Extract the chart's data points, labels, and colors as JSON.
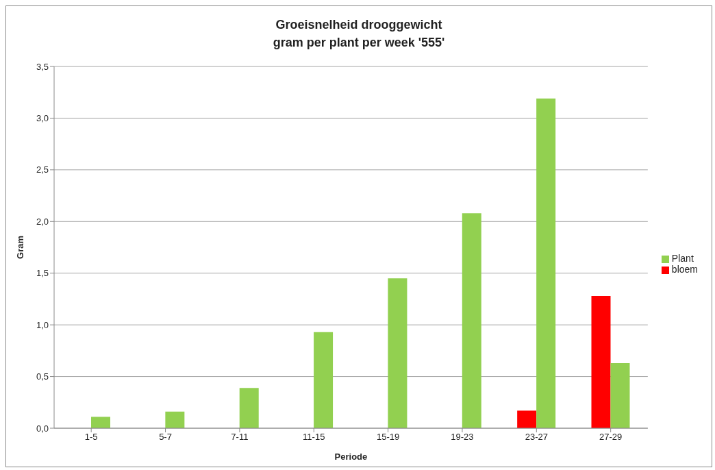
{
  "chart_data": {
    "type": "bar",
    "title": "Groeisnelheid drooggewicht\ngram per plant per week '555'",
    "xlabel": "Periode",
    "ylabel": "Gram",
    "categories": [
      "1-5",
      "5-7",
      "7-11",
      "11-15",
      "15-19",
      "19-23",
      "23-27",
      "27-29"
    ],
    "series": [
      {
        "name": "bloem",
        "color": "#ff0000",
        "values": [
          null,
          null,
          null,
          null,
          null,
          null,
          0.17,
          1.28
        ]
      },
      {
        "name": "Plant",
        "color": "#92d050",
        "values": [
          0.11,
          0.16,
          0.39,
          0.93,
          1.45,
          2.08,
          3.19,
          0.63
        ]
      }
    ],
    "ylim": [
      0,
      3.5
    ],
    "yticks": [
      {
        "value": 0,
        "label": "0,0"
      },
      {
        "value": 0.5,
        "label": "0,5"
      },
      {
        "value": 1,
        "label": "1,0"
      },
      {
        "value": 1.5,
        "label": "1,5"
      },
      {
        "value": 2,
        "label": "2,0"
      },
      {
        "value": 2.5,
        "label": "2,5"
      },
      {
        "value": 3,
        "label": "3,0"
      },
      {
        "value": 3.5,
        "label": "3,5"
      }
    ],
    "grid": "y",
    "legend": "right"
  }
}
